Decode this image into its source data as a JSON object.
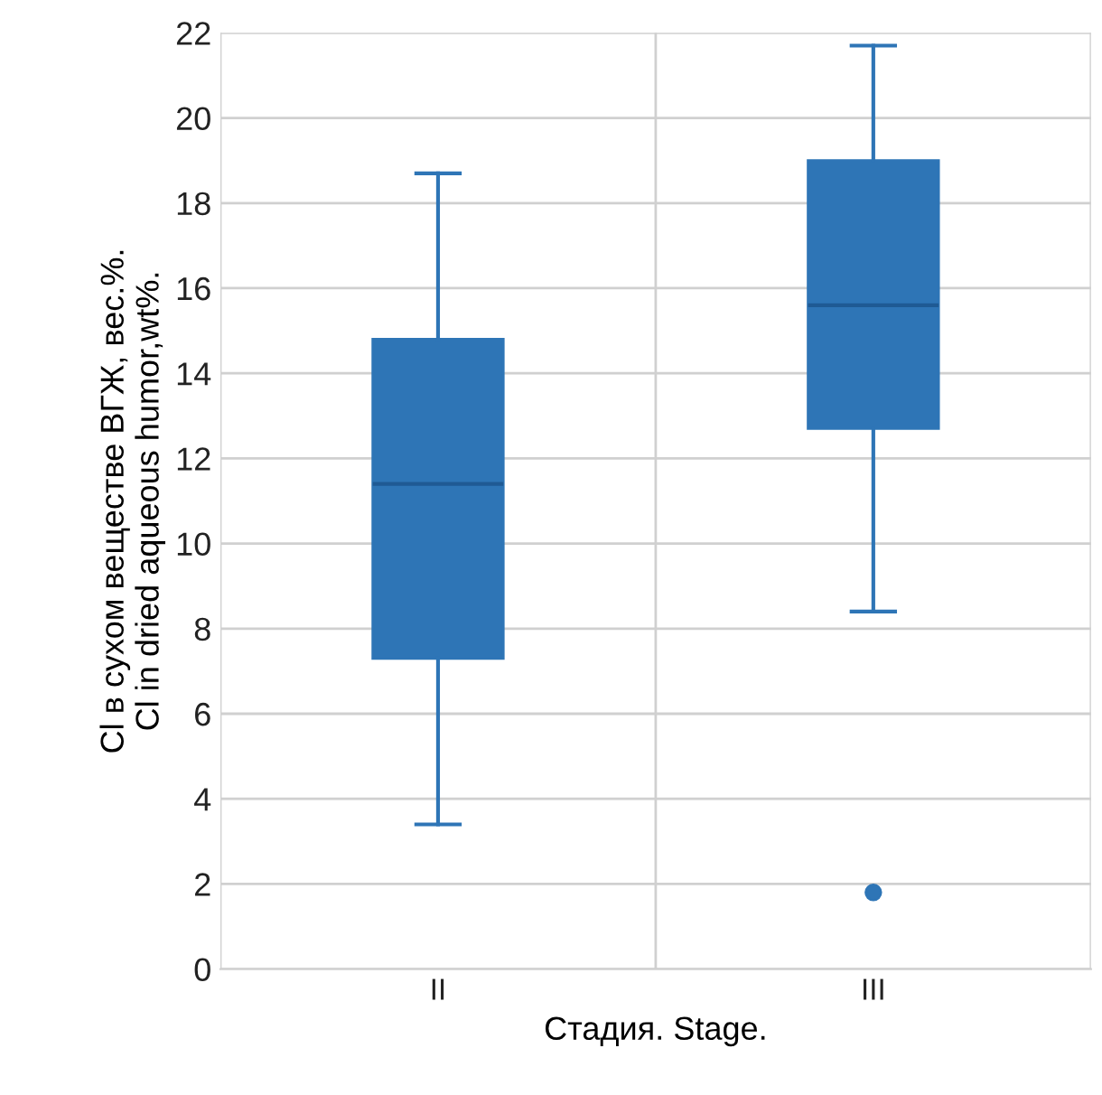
{
  "chart_data": {
    "type": "box",
    "xlabel": "Стадия. Stage.",
    "ylabel": "Cl в сухом веществе ВГЖ, вес.%.\nCl in dried aqueous humor,wt%.",
    "categories": [
      "II",
      "III"
    ],
    "boxes": [
      {
        "low": 3.4,
        "q1": 7.3,
        "median": 11.4,
        "q3": 14.8,
        "high": 18.7
      },
      {
        "low": 8.4,
        "q1": 12.7,
        "median": 15.6,
        "q3": 19.0,
        "high": 21.7,
        "outliers": [
          1.8
        ]
      }
    ],
    "color": "#2e75b6",
    "ylim": [
      0,
      22
    ],
    "yticks": [
      0,
      2,
      4,
      6,
      8,
      10,
      12,
      14,
      16,
      18,
      20,
      22
    ],
    "grid": true
  }
}
